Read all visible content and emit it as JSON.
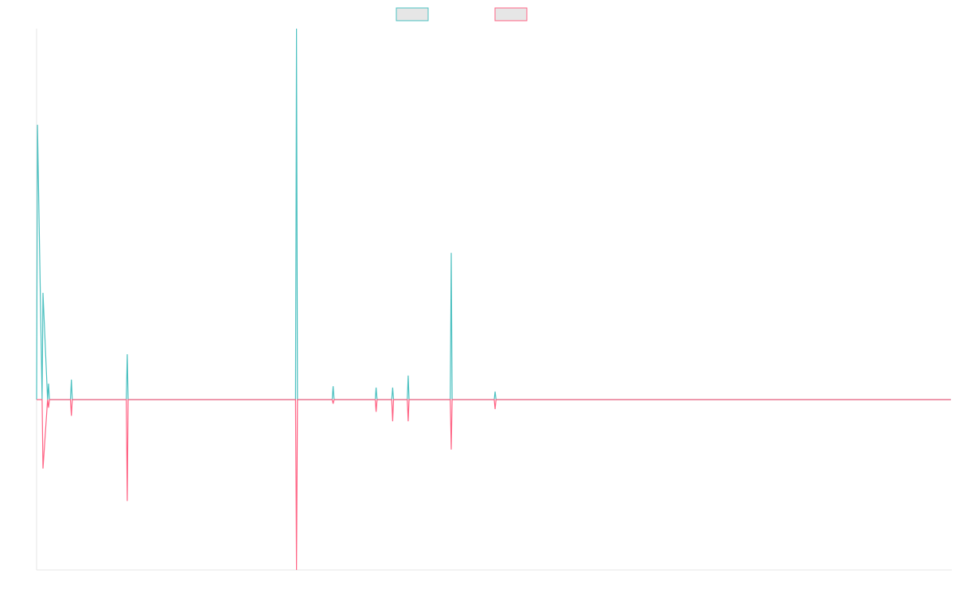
{
  "chart_data": {
    "type": "line",
    "title": "",
    "xlabel": "",
    "ylabel": "",
    "xlim": [
      0,
      1000
    ],
    "ylim": [
      -100,
      100
    ],
    "grid": false,
    "legend": "top-center",
    "series": [
      {
        "color": "#4bc0c0",
        "x": [
          0,
          1,
          6,
          7,
          12,
          13,
          14,
          37,
          38,
          39,
          98,
          99,
          100,
          283,
          284,
          285,
          323,
          324,
          325,
          370,
          371,
          372,
          388,
          389,
          390,
          405,
          406,
          407,
          452,
          453,
          454,
          500,
          501,
          502,
          999
        ],
        "values": [
          0,
          103,
          0,
          40,
          0,
          6,
          0,
          0,
          7.5,
          0,
          0,
          17,
          0,
          0,
          139,
          0,
          0,
          5,
          0,
          0,
          4.5,
          0,
          0,
          4.5,
          0,
          0,
          9,
          0,
          0,
          55,
          0,
          0,
          3,
          0,
          0
        ]
      },
      {
        "color": "#ff6384",
        "x": [
          0,
          1,
          6,
          7,
          12,
          13,
          14,
          37,
          38,
          39,
          98,
          99,
          100,
          283,
          284,
          285,
          323,
          324,
          325,
          370,
          371,
          372,
          388,
          389,
          390,
          405,
          406,
          407,
          452,
          453,
          454,
          500,
          501,
          502,
          999
        ],
        "values": [
          0,
          0,
          0,
          -25.5,
          0,
          -3,
          0,
          0,
          -6,
          0,
          0,
          -37.5,
          0,
          0,
          -63,
          0,
          0,
          -1.5,
          0,
          0,
          -4.5,
          0,
          0,
          -8,
          0,
          0,
          -8,
          0,
          0,
          -18.5,
          0,
          0,
          -3.5,
          0,
          0
        ]
      }
    ]
  },
  "legend": {
    "items": [
      {
        "label": "",
        "color": "#4bc0c0",
        "fill": "#e6e6e6"
      },
      {
        "label": "",
        "color": "#ff6384",
        "fill": "#e6e6e6"
      }
    ]
  }
}
